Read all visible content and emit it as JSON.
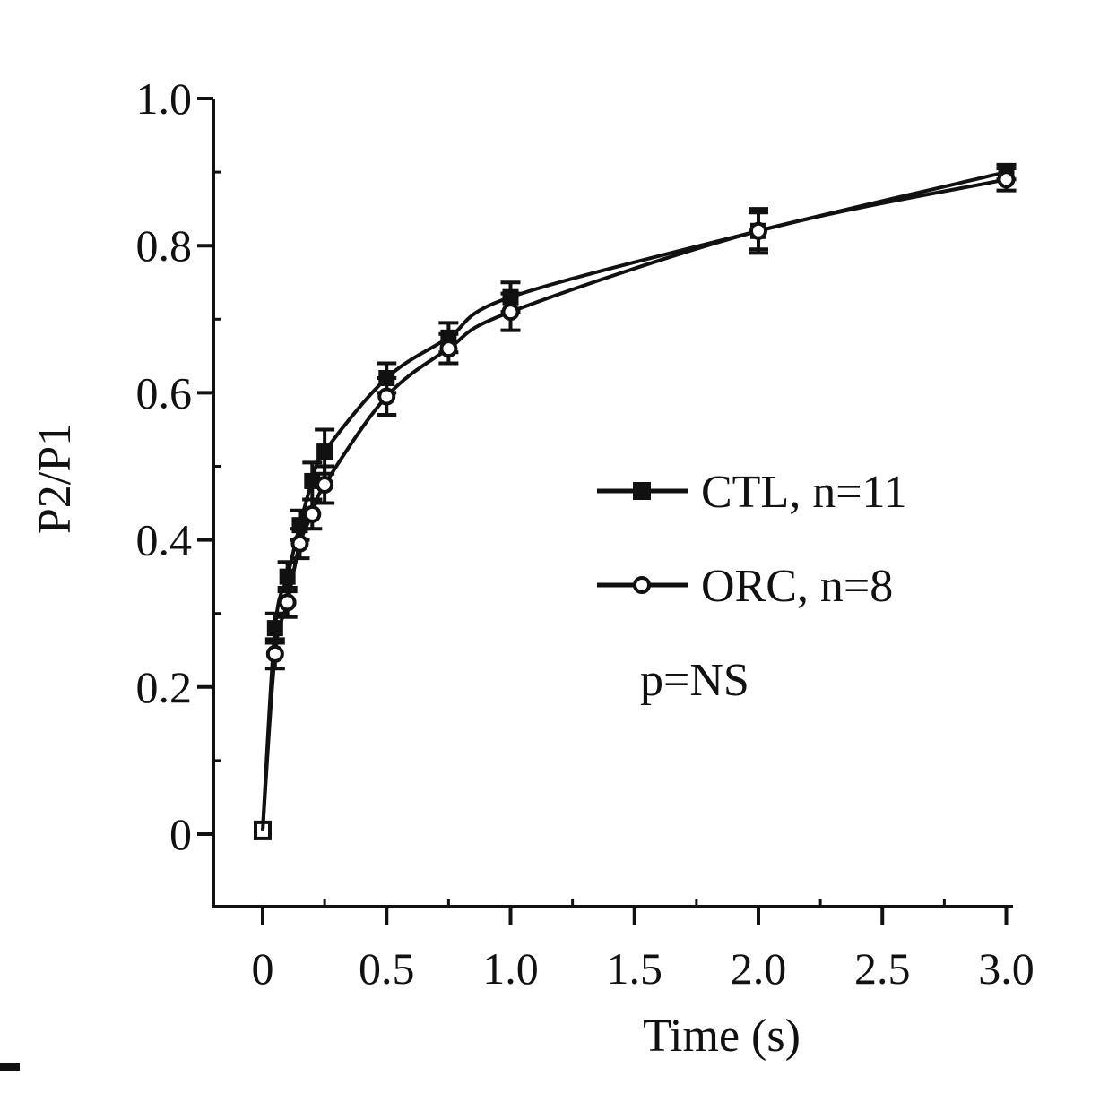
{
  "chart_data": {
    "type": "line",
    "title": "",
    "xlabel": "Time (s)",
    "ylabel": "P2/P1",
    "xlim": [
      -0.2,
      3.05
    ],
    "ylim": [
      -0.095,
      1.0
    ],
    "xticks": [
      0,
      0.5,
      1.0,
      1.5,
      2.0,
      2.5,
      3.0
    ],
    "xtick_labels": [
      "0",
      "0.5",
      "1.0",
      "1.5",
      "2.0",
      "2.5",
      "3.0"
    ],
    "yticks": [
      0,
      0.2,
      0.4,
      0.6,
      0.8,
      1.0
    ],
    "ytick_labels": [
      "0",
      "0.2",
      "0.4",
      "0.6",
      "0.8",
      "1.0"
    ],
    "grid": false,
    "legend_position": "right-center",
    "annotation": "p=NS",
    "series": [
      {
        "name": "CTL, n=11",
        "marker": "filled-square",
        "x": [
          0,
          0.05,
          0.1,
          0.15,
          0.2,
          0.25,
          0.5,
          0.75,
          1.0,
          2.0,
          3.0
        ],
        "y": [
          0.005,
          0.28,
          0.35,
          0.42,
          0.48,
          0.52,
          0.62,
          0.675,
          0.73,
          0.82,
          0.9
        ],
        "error": [
          0,
          0.02,
          0.02,
          0.02,
          0.025,
          0.03,
          0.02,
          0.02,
          0.02,
          0.025,
          0.01
        ]
      },
      {
        "name": "ORC, n=8",
        "marker": "open-circle",
        "x": [
          0,
          0.05,
          0.1,
          0.15,
          0.2,
          0.25,
          0.5,
          0.75,
          1.0,
          2.0,
          3.0
        ],
        "y": [
          0.005,
          0.245,
          0.315,
          0.395,
          0.435,
          0.475,
          0.595,
          0.66,
          0.71,
          0.82,
          0.89
        ],
        "error": [
          0,
          0.02,
          0.02,
          0.02,
          0.02,
          0.025,
          0.025,
          0.02,
          0.025,
          0.03,
          0.015
        ]
      }
    ]
  }
}
